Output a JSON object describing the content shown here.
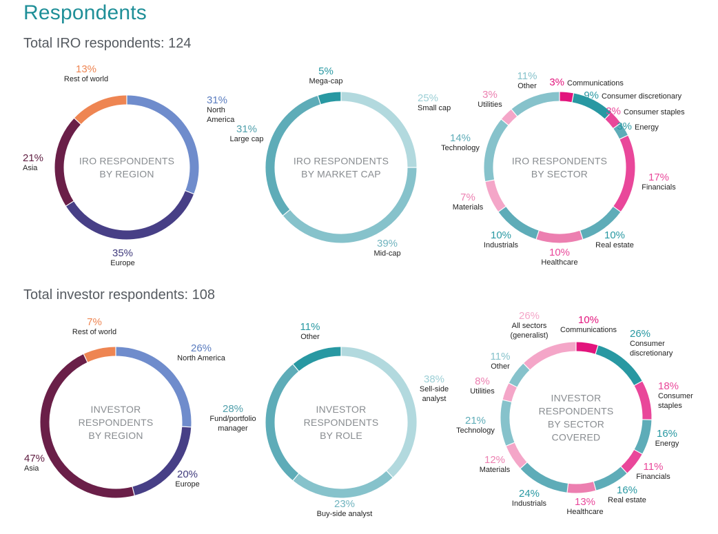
{
  "page_title": "Respondents",
  "sections": {
    "iro": {
      "title": "Total IRO respondents: 124"
    },
    "investor": {
      "title": "Total investor respondents: 108"
    }
  },
  "colors": {
    "rest_of_world": "#ee8552",
    "north_america": "#6f8ccc",
    "europe": "#473f86",
    "asia": "#6a1f48",
    "teal_dark": "#2898a2",
    "teal_mid": "#5eacb8",
    "teal_light": "#b2d9de",
    "teal_soft": "#86c2cb",
    "pink": "#e9479a",
    "pink_hot": "#e2147c",
    "pink_light": "#f4a6c8",
    "pink_soft": "#ec7fb0"
  },
  "chart_data": [
    {
      "type": "pie",
      "title": "IRO RESPONDENTS BY REGION",
      "slices": [
        {
          "label": "North America",
          "value": 31
        },
        {
          "label": "Europe",
          "value": 35
        },
        {
          "label": "Asia",
          "value": 21
        },
        {
          "label": "Rest of world",
          "value": 13
        }
      ]
    },
    {
      "type": "pie",
      "title": "IRO RESPONDENTS BY MARKET CAP",
      "slices": [
        {
          "label": "Mega-cap",
          "value": 5
        },
        {
          "label": "Small cap",
          "value": 25
        },
        {
          "label": "Mid-cap",
          "value": 39
        },
        {
          "label": "Large cap",
          "value": 31
        }
      ]
    },
    {
      "type": "pie",
      "title": "IRO RESPONDENTS BY SECTOR",
      "slices": [
        {
          "label": "Communications",
          "value": 3
        },
        {
          "label": "Consumer discretionary",
          "value": 9
        },
        {
          "label": "Consumer staples",
          "value": 3
        },
        {
          "label": "Energy",
          "value": 3
        },
        {
          "label": "Financials",
          "value": 17
        },
        {
          "label": "Real estate",
          "value": 10
        },
        {
          "label": "Healthcare",
          "value": 10
        },
        {
          "label": "Industrials",
          "value": 10
        },
        {
          "label": "Materials",
          "value": 7
        },
        {
          "label": "Technology",
          "value": 14
        },
        {
          "label": "Utilities",
          "value": 3
        },
        {
          "label": "Other",
          "value": 11
        }
      ]
    },
    {
      "type": "pie",
      "title": "INVESTOR RESPONDENTS BY REGION",
      "slices": [
        {
          "label": "North America",
          "value": 26
        },
        {
          "label": "Europe",
          "value": 20
        },
        {
          "label": "Asia",
          "value": 47
        },
        {
          "label": "Rest of world",
          "value": 7
        }
      ]
    },
    {
      "type": "pie",
      "title": "INVESTOR RESPONDENTS BY ROLE",
      "slices": [
        {
          "label": "Sell-side analyst",
          "value": 38
        },
        {
          "label": "Buy-side analyst",
          "value": 23
        },
        {
          "label": "Fund/portfolio manager",
          "value": 28
        },
        {
          "label": "Other",
          "value": 11
        }
      ]
    },
    {
      "type": "pie",
      "title": "INVESTOR RESPONDENTS BY SECTOR COVERED",
      "slices": [
        {
          "label": "Communications",
          "value": 10
        },
        {
          "label": "Consumer discretionary",
          "value": 26
        },
        {
          "label": "Consumer staples",
          "value": 18
        },
        {
          "label": "Energy",
          "value": 16
        },
        {
          "label": "Financials",
          "value": 11
        },
        {
          "label": "Real estate",
          "value": 16
        },
        {
          "label": "Healthcare",
          "value": 13
        },
        {
          "label": "Industrials",
          "value": 24
        },
        {
          "label": "Materials",
          "value": 12
        },
        {
          "label": "Technology",
          "value": 21
        },
        {
          "label": "Utilities",
          "value": 8
        },
        {
          "label": "Other",
          "value": 11
        },
        {
          "label": "All sectors (generalist)",
          "value": 26
        }
      ]
    }
  ]
}
